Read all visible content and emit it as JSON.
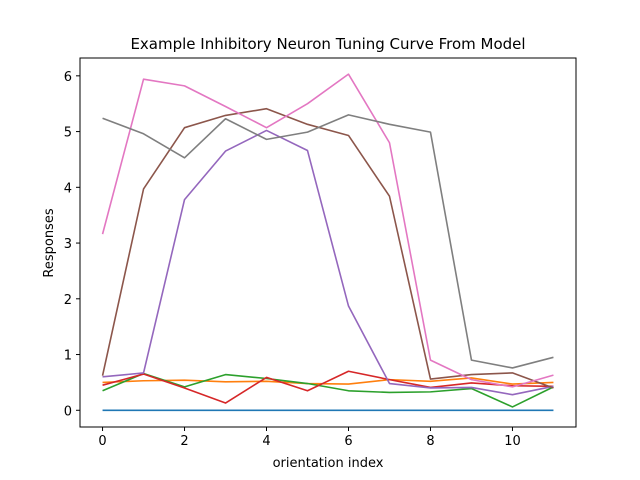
{
  "chart_data": {
    "type": "line",
    "title": "Example Inhibitory Neuron Tuning Curve From Model",
    "xlabel": "orientation index",
    "ylabel": "Responses",
    "xlim": [
      -0.55,
      11.55
    ],
    "ylim": [
      -0.3,
      6.32
    ],
    "xticks": [
      0,
      2,
      4,
      6,
      8,
      10
    ],
    "yticks": [
      0,
      1,
      2,
      3,
      4,
      5,
      6
    ],
    "grid": false,
    "x": [
      0,
      1,
      2,
      3,
      4,
      5,
      6,
      7,
      8,
      9,
      10,
      11
    ],
    "series": [
      {
        "color": "#1f77b4",
        "values": [
          0.0,
          0.0,
          0.0,
          0.0,
          0.0,
          0.0,
          0.0,
          0.0,
          0.0,
          0.0,
          0.0,
          0.0
        ]
      },
      {
        "color": "#ff7f0e",
        "values": [
          0.5,
          0.53,
          0.54,
          0.51,
          0.52,
          0.48,
          0.47,
          0.55,
          0.52,
          0.58,
          0.47,
          0.5
        ]
      },
      {
        "color": "#2ca02c",
        "values": [
          0.35,
          0.66,
          0.42,
          0.64,
          0.57,
          0.48,
          0.35,
          0.32,
          0.33,
          0.39,
          0.06,
          0.42
        ]
      },
      {
        "color": "#d62728",
        "values": [
          0.45,
          0.65,
          0.4,
          0.13,
          0.59,
          0.35,
          0.7,
          0.55,
          0.41,
          0.49,
          0.44,
          0.43
        ]
      },
      {
        "color": "#9467bd",
        "values": [
          0.6,
          0.67,
          3.78,
          4.65,
          5.02,
          4.66,
          1.87,
          0.48,
          0.4,
          0.41,
          0.28,
          0.43
        ]
      },
      {
        "color": "#8c564b",
        "values": [
          0.62,
          3.97,
          5.07,
          5.29,
          5.41,
          5.13,
          4.93,
          3.84,
          0.56,
          0.64,
          0.67,
          0.4
        ]
      },
      {
        "color": "#e377c2",
        "values": [
          3.16,
          5.94,
          5.82,
          5.45,
          5.07,
          5.5,
          6.03,
          4.8,
          0.9,
          0.55,
          0.42,
          0.63
        ]
      },
      {
        "color": "#7f7f7f",
        "values": [
          5.24,
          4.96,
          4.53,
          5.23,
          4.86,
          4.99,
          5.3,
          5.13,
          4.99,
          0.9,
          0.76,
          0.95
        ]
      }
    ]
  }
}
